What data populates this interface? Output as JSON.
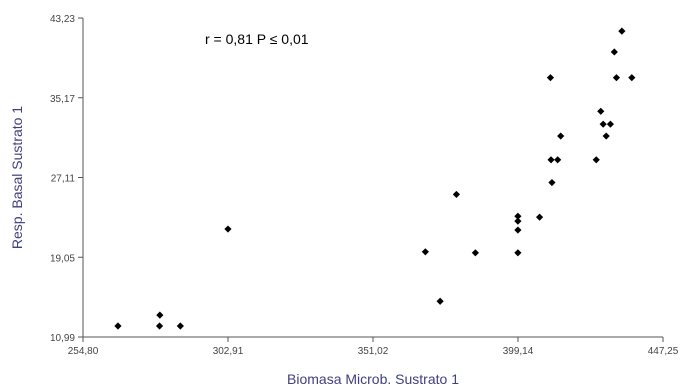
{
  "chart_data": {
    "type": "scatter",
    "title": "",
    "annotation": "r = 0,81 P ≤ 0,01",
    "xlabel": "Biomasa Microb. Sustrato 1",
    "ylabel": "Resp. Basal Sustrato 1",
    "xlim": [
      254.8,
      447.25
    ],
    "ylim": [
      10.99,
      43.23
    ],
    "x_ticks": [
      "254,80",
      "302,91",
      "351,02",
      "399,14",
      "447,25"
    ],
    "y_ticks": [
      "10,99",
      "19,05",
      "27,11",
      "35,17",
      "43,23"
    ],
    "x_tick_values": [
      254.8,
      302.91,
      351.02,
      399.14,
      447.25
    ],
    "y_tick_values": [
      10.99,
      19.05,
      27.11,
      35.17,
      43.23
    ],
    "grid": false,
    "marker": "diamond",
    "colors": {
      "marker": "#000000",
      "axis": "#555555",
      "axis_title": "#404080",
      "tick_label": "#444444"
    },
    "points": [
      {
        "x": 266.4,
        "y": 12.1
      },
      {
        "x": 280.3,
        "y": 13.2
      },
      {
        "x": 280.2,
        "y": 12.1
      },
      {
        "x": 287.1,
        "y": 12.1
      },
      {
        "x": 302.9,
        "y": 21.9
      },
      {
        "x": 368.4,
        "y": 19.6
      },
      {
        "x": 373.3,
        "y": 14.6
      },
      {
        "x": 378.7,
        "y": 25.4
      },
      {
        "x": 385.0,
        "y": 19.5
      },
      {
        "x": 399.1,
        "y": 23.2
      },
      {
        "x": 399.1,
        "y": 22.7
      },
      {
        "x": 399.1,
        "y": 21.8
      },
      {
        "x": 399.1,
        "y": 19.5
      },
      {
        "x": 406.3,
        "y": 23.1
      },
      {
        "x": 409.9,
        "y": 37.2
      },
      {
        "x": 410.1,
        "y": 28.9
      },
      {
        "x": 410.4,
        "y": 26.6
      },
      {
        "x": 412.3,
        "y": 28.9
      },
      {
        "x": 413.3,
        "y": 31.3
      },
      {
        "x": 425.1,
        "y": 28.9
      },
      {
        "x": 426.6,
        "y": 33.8
      },
      {
        "x": 427.4,
        "y": 32.5
      },
      {
        "x": 428.4,
        "y": 31.3
      },
      {
        "x": 429.8,
        "y": 32.5
      },
      {
        "x": 431.1,
        "y": 39.8
      },
      {
        "x": 431.8,
        "y": 37.2
      },
      {
        "x": 433.6,
        "y": 41.9
      },
      {
        "x": 436.9,
        "y": 37.2
      }
    ]
  }
}
